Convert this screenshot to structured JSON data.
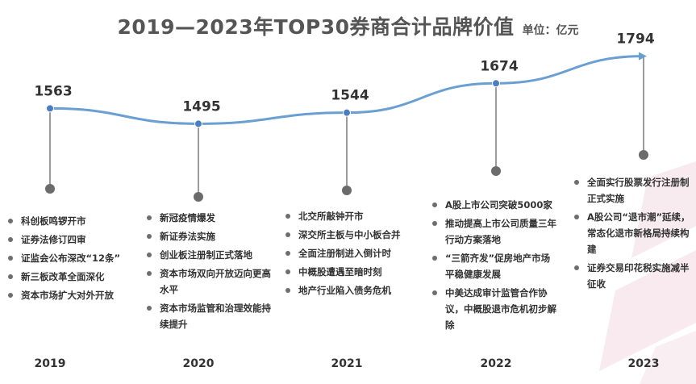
{
  "header": {
    "title": "2019—2023年TOP30券商合计品牌价值",
    "unit": "单位：亿元"
  },
  "colors": {
    "line": "#6a9fd4",
    "marker": "#4a7fc1",
    "stem": "#7a7a7a",
    "stem_dot": "#6b6b6b"
  },
  "chart_data": {
    "type": "line",
    "title": "2019—2023年TOP30券商合计品牌价值",
    "unit": "亿元",
    "x": [
      "2019",
      "2020",
      "2021",
      "2022",
      "2023"
    ],
    "values": [
      1563,
      1495,
      1544,
      1674,
      1794
    ],
    "grid": false,
    "legend": "none"
  },
  "events": [
    {
      "year": "2019",
      "items": [
        "科创板鸣锣开市",
        "证券法修订四审",
        "证监会公布深改“12条”",
        "新三板改革全面深化",
        "资本市场扩大对外开放"
      ]
    },
    {
      "year": "2020",
      "items": [
        "新冠疫情爆发",
        "新证券法实施",
        "创业板注册制正式落地",
        "资本市场双向开放迈向更高水平",
        "资本市场监管和治理效能持续提升"
      ]
    },
    {
      "year": "2021",
      "items": [
        "北交所敲钟开市",
        "深交所主板与中小板合并",
        "全面注册制进入倒计时",
        "中概股遭遇至暗时刻",
        "地产行业陷入债务危机"
      ]
    },
    {
      "year": "2022",
      "items": [
        "A股上市公司突破5000家",
        "推动提高上市公司质量三年行动方案落地",
        "“三箭齐发”促房地产市场平稳健康发展",
        "中美达成审计监管合作协议，中概股退市危机初步解除"
      ]
    },
    {
      "year": "2023",
      "items": [
        "全面实行股票发行注册制正式实施",
        "A股公司“退市潮”延续，常态化退市新格局持续构建",
        "证券交易印花税实施减半征收"
      ]
    }
  ]
}
